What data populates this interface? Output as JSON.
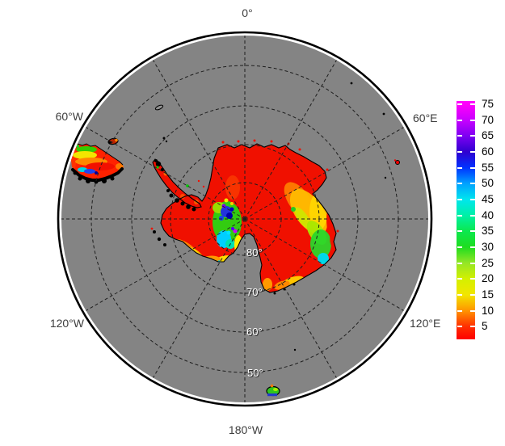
{
  "figure": {
    "background": "#ffffff",
    "ocean_color": "#848484",
    "map_border_color": "#000000",
    "land_low_value_color": "#f01000"
  },
  "map": {
    "kind": "south-polar-stereographic",
    "meridian_labels": [
      "0°",
      "60°W",
      "60°E",
      "120°W",
      "120°E",
      "180°W"
    ],
    "latitude_labels": [
      "80°",
      "70°",
      "60°",
      "50°"
    ]
  },
  "colorbar": {
    "min": 1,
    "max": 76,
    "ticks": [
      "75",
      "70",
      "65",
      "60",
      "55",
      "50",
      "45",
      "40",
      "35",
      "30",
      "25",
      "20",
      "15",
      "10",
      "5"
    ],
    "tick_values": [
      75,
      70,
      65,
      60,
      55,
      50,
      45,
      40,
      35,
      30,
      25,
      20,
      15,
      10,
      5
    ],
    "stops": [
      {
        "value": 1,
        "color": "#ff0000"
      },
      {
        "value": 5,
        "color": "#ff2e00"
      },
      {
        "value": 10,
        "color": "#ff9400"
      },
      {
        "value": 15,
        "color": "#f2e600"
      },
      {
        "value": 20,
        "color": "#d4f000"
      },
      {
        "value": 25,
        "color": "#95e626"
      },
      {
        "value": 30,
        "color": "#1fdd1f"
      },
      {
        "value": 35,
        "color": "#0ce84e"
      },
      {
        "value": 40,
        "color": "#00f0a6"
      },
      {
        "value": 45,
        "color": "#00e6ee"
      },
      {
        "value": 50,
        "color": "#00a2ff"
      },
      {
        "value": 55,
        "color": "#0033ff"
      },
      {
        "value": 60,
        "color": "#3000d0"
      },
      {
        "value": 65,
        "color": "#7d00f2"
      },
      {
        "value": 70,
        "color": "#c800ff"
      },
      {
        "value": 75,
        "color": "#ff00fa"
      },
      {
        "value": 76,
        "color": "#ff00ff"
      }
    ]
  },
  "chart_data": {
    "type": "heatmap",
    "title": "",
    "projection": "south polar stereographic map of Antarctica",
    "legend_position": "right",
    "colorbar_range": [
      1,
      76
    ],
    "colorbar_ticks": [
      5,
      10,
      15,
      20,
      25,
      30,
      35,
      40,
      45,
      50,
      55,
      60,
      65,
      70,
      75
    ],
    "graticule": {
      "latitude_circles_deg": [
        80,
        70,
        60,
        50
      ],
      "meridian_interval_deg": 30,
      "style": "dashed"
    },
    "regions": [
      {
        "area": "Antarctic interior and most coasts",
        "approx_value": "<=5 (red)"
      },
      {
        "area": "East Antarctic coastal band",
        "approx_value": "10-45 (orange/yellow/green/cyan)"
      },
      {
        "area": "West Antarctica near Ross Sea",
        "approx_value": "15-75 (green/cyan/blue/purple spots)"
      },
      {
        "area": "Southern South America tip",
        "approx_value": "5-60 (rainbow striped patch)"
      },
      {
        "area": "Small sub-antarctic island (lower center)",
        "approx_value": "20-60 (green/blue)"
      },
      {
        "area": "Ocean / no data",
        "approx_value": "gray"
      }
    ]
  }
}
